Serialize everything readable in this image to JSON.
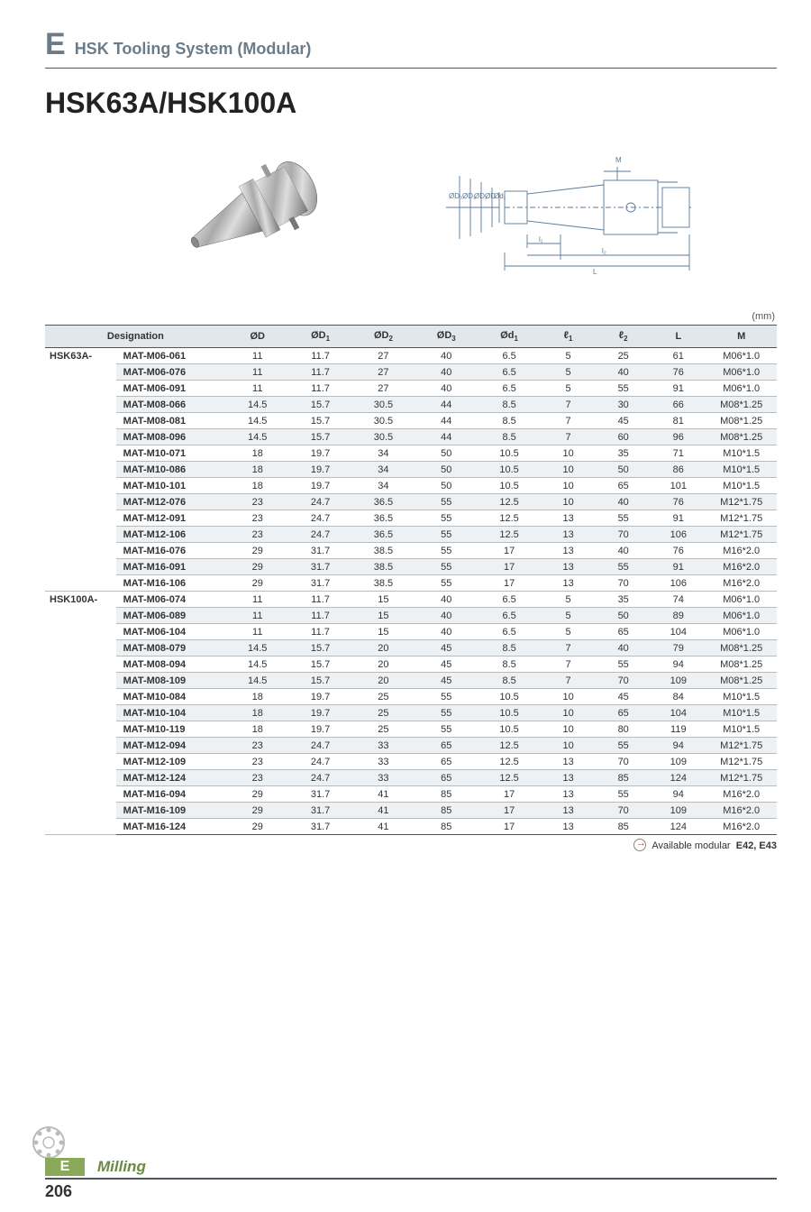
{
  "header": {
    "letter": "E",
    "title": "HSK Tooling System (Modular)"
  },
  "product_title": "HSK63A/HSK100A",
  "unit_label": "(mm)",
  "diagram_labels": {
    "m": "M",
    "d3": "ØD₃",
    "d2": "ØD₂",
    "d1": "ØD₁",
    "d": "ØD",
    "sd1": "Ød₁",
    "l1": "l₁",
    "l2": "l₂",
    "l": "L"
  },
  "columns": [
    "Designation",
    "ØD",
    "ØD1",
    "ØD2",
    "ØD3",
    "Ød1",
    "ℓ1",
    "ℓ2",
    "L",
    "M"
  ],
  "groups": [
    {
      "prefix": "HSK63A-",
      "rows": [
        {
          "p": "MAT-M06-061",
          "v": [
            "11",
            "11.7",
            "27",
            "40",
            "6.5",
            "5",
            "25",
            "61",
            "M06*1.0"
          ]
        },
        {
          "p": "MAT-M06-076",
          "v": [
            "11",
            "11.7",
            "27",
            "40",
            "6.5",
            "5",
            "40",
            "76",
            "M06*1.0"
          ]
        },
        {
          "p": "MAT-M06-091",
          "v": [
            "11",
            "11.7",
            "27",
            "40",
            "6.5",
            "5",
            "55",
            "91",
            "M06*1.0"
          ]
        },
        {
          "p": "MAT-M08-066",
          "v": [
            "14.5",
            "15.7",
            "30.5",
            "44",
            "8.5",
            "7",
            "30",
            "66",
            "M08*1.25"
          ]
        },
        {
          "p": "MAT-M08-081",
          "v": [
            "14.5",
            "15.7",
            "30.5",
            "44",
            "8.5",
            "7",
            "45",
            "81",
            "M08*1.25"
          ]
        },
        {
          "p": "MAT-M08-096",
          "v": [
            "14.5",
            "15.7",
            "30.5",
            "44",
            "8.5",
            "7",
            "60",
            "96",
            "M08*1.25"
          ]
        },
        {
          "p": "MAT-M10-071",
          "v": [
            "18",
            "19.7",
            "34",
            "50",
            "10.5",
            "10",
            "35",
            "71",
            "M10*1.5"
          ]
        },
        {
          "p": "MAT-M10-086",
          "v": [
            "18",
            "19.7",
            "34",
            "50",
            "10.5",
            "10",
            "50",
            "86",
            "M10*1.5"
          ]
        },
        {
          "p": "MAT-M10-101",
          "v": [
            "18",
            "19.7",
            "34",
            "50",
            "10.5",
            "10",
            "65",
            "101",
            "M10*1.5"
          ]
        },
        {
          "p": "MAT-M12-076",
          "v": [
            "23",
            "24.7",
            "36.5",
            "55",
            "12.5",
            "10",
            "40",
            "76",
            "M12*1.75"
          ]
        },
        {
          "p": "MAT-M12-091",
          "v": [
            "23",
            "24.7",
            "36.5",
            "55",
            "12.5",
            "13",
            "55",
            "91",
            "M12*1.75"
          ]
        },
        {
          "p": "MAT-M12-106",
          "v": [
            "23",
            "24.7",
            "36.5",
            "55",
            "12.5",
            "13",
            "70",
            "106",
            "M12*1.75"
          ]
        },
        {
          "p": "MAT-M16-076",
          "v": [
            "29",
            "31.7",
            "38.5",
            "55",
            "17",
            "13",
            "40",
            "76",
            "M16*2.0"
          ]
        },
        {
          "p": "MAT-M16-091",
          "v": [
            "29",
            "31.7",
            "38.5",
            "55",
            "17",
            "13",
            "55",
            "91",
            "M16*2.0"
          ]
        },
        {
          "p": "MAT-M16-106",
          "v": [
            "29",
            "31.7",
            "38.5",
            "55",
            "17",
            "13",
            "70",
            "106",
            "M16*2.0"
          ]
        }
      ]
    },
    {
      "prefix": "HSK100A-",
      "rows": [
        {
          "p": "MAT-M06-074",
          "v": [
            "11",
            "11.7",
            "15",
            "40",
            "6.5",
            "5",
            "35",
            "74",
            "M06*1.0"
          ]
        },
        {
          "p": "MAT-M06-089",
          "v": [
            "11",
            "11.7",
            "15",
            "40",
            "6.5",
            "5",
            "50",
            "89",
            "M06*1.0"
          ]
        },
        {
          "p": "MAT-M06-104",
          "v": [
            "11",
            "11.7",
            "15",
            "40",
            "6.5",
            "5",
            "65",
            "104",
            "M06*1.0"
          ]
        },
        {
          "p": "MAT-M08-079",
          "v": [
            "14.5",
            "15.7",
            "20",
            "45",
            "8.5",
            "7",
            "40",
            "79",
            "M08*1.25"
          ]
        },
        {
          "p": "MAT-M08-094",
          "v": [
            "14.5",
            "15.7",
            "20",
            "45",
            "8.5",
            "7",
            "55",
            "94",
            "M08*1.25"
          ]
        },
        {
          "p": "MAT-M08-109",
          "v": [
            "14.5",
            "15.7",
            "20",
            "45",
            "8.5",
            "7",
            "70",
            "109",
            "M08*1.25"
          ]
        },
        {
          "p": "MAT-M10-084",
          "v": [
            "18",
            "19.7",
            "25",
            "55",
            "10.5",
            "10",
            "45",
            "84",
            "M10*1.5"
          ]
        },
        {
          "p": "MAT-M10-104",
          "v": [
            "18",
            "19.7",
            "25",
            "55",
            "10.5",
            "10",
            "65",
            "104",
            "M10*1.5"
          ]
        },
        {
          "p": "MAT-M10-119",
          "v": [
            "18",
            "19.7",
            "25",
            "55",
            "10.5",
            "10",
            "80",
            "119",
            "M10*1.5"
          ]
        },
        {
          "p": "MAT-M12-094",
          "v": [
            "23",
            "24.7",
            "33",
            "65",
            "12.5",
            "10",
            "55",
            "94",
            "M12*1.75"
          ]
        },
        {
          "p": "MAT-M12-109",
          "v": [
            "23",
            "24.7",
            "33",
            "65",
            "12.5",
            "13",
            "70",
            "109",
            "M12*1.75"
          ]
        },
        {
          "p": "MAT-M12-124",
          "v": [
            "23",
            "24.7",
            "33",
            "65",
            "12.5",
            "13",
            "85",
            "124",
            "M12*1.75"
          ]
        },
        {
          "p": "MAT-M16-094",
          "v": [
            "29",
            "31.7",
            "41",
            "85",
            "17",
            "13",
            "55",
            "94",
            "M16*2.0"
          ]
        },
        {
          "p": "MAT-M16-109",
          "v": [
            "29",
            "31.7",
            "41",
            "85",
            "17",
            "13",
            "70",
            "109",
            "M16*2.0"
          ]
        },
        {
          "p": "MAT-M16-124",
          "v": [
            "29",
            "31.7",
            "41",
            "85",
            "17",
            "13",
            "85",
            "124",
            "M16*2.0"
          ]
        }
      ]
    }
  ],
  "footnote": {
    "text": "Available modular",
    "bold": "E42, E43"
  },
  "footer": {
    "tab_letter": "E",
    "tab_label": "Milling",
    "page": "206"
  },
  "style": {
    "col_widths": [
      "9%",
      "14%",
      "8%",
      "8%",
      "8%",
      "8%",
      "8%",
      "7%",
      "7%",
      "7%",
      "9%"
    ],
    "header_bg": "#e2e7eb",
    "shade_bg": "#eef1f3",
    "rule_color": "#4a5560",
    "accent_green": "#8aa85a"
  }
}
